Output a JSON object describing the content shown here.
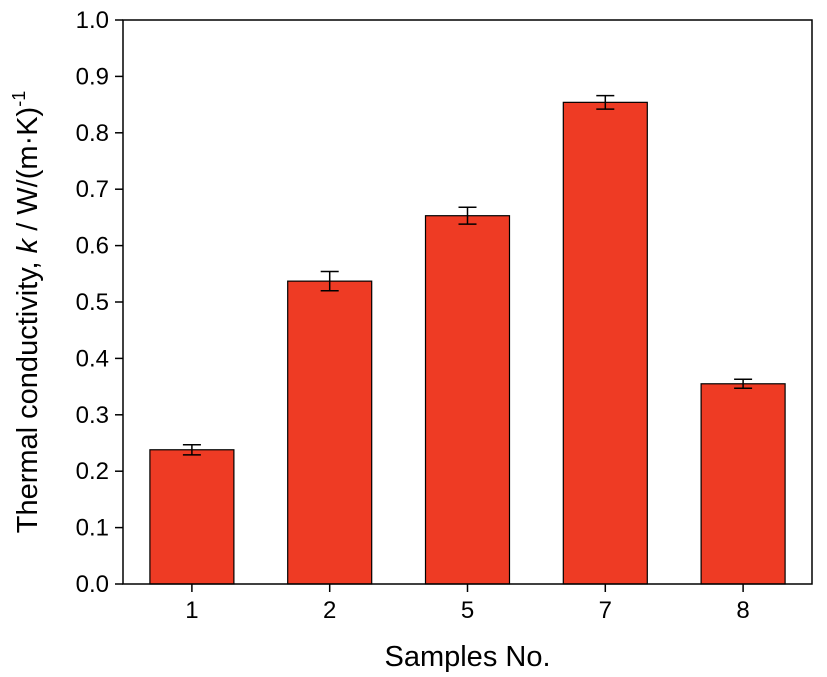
{
  "chart_data": {
    "type": "bar",
    "title": "",
    "xlabel": "Samples No.",
    "ylabel": {
      "prefix": "Thermal conductivity, ",
      "symbol": "k",
      "unit": " / W/(m·K)",
      "exponent": "-1"
    },
    "categories": [
      "1",
      "2",
      "5",
      "7",
      "8"
    ],
    "values": [
      0.238,
      0.537,
      0.653,
      0.854,
      0.355
    ],
    "errors": [
      0.009,
      0.017,
      0.015,
      0.012,
      0.008
    ],
    "ylim": [
      0.0,
      1.0
    ],
    "yticks": [
      "0.0",
      "0.1",
      "0.2",
      "0.3",
      "0.4",
      "0.5",
      "0.6",
      "0.7",
      "0.8",
      "0.9",
      "1.0"
    ],
    "legend": "none",
    "grid": false,
    "colors": {
      "bar": "#ee3b24",
      "outline": "#000000"
    }
  }
}
